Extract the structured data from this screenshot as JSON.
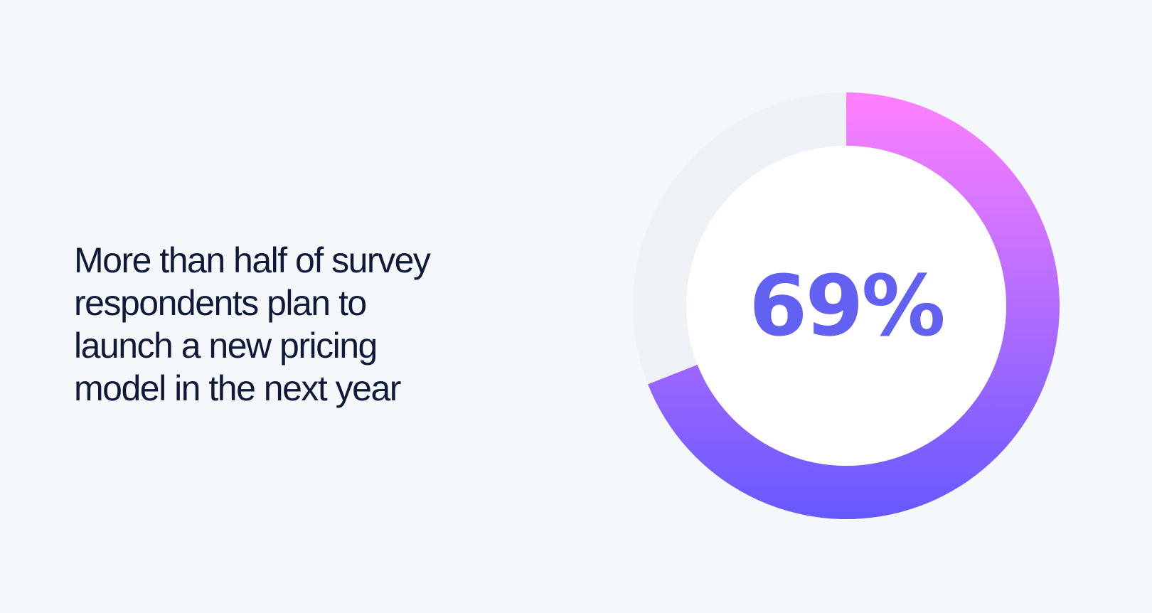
{
  "headline": {
    "lines": [
      "More than half of survey",
      "respondents plan to",
      "launch a new pricing",
      "model in the next year"
    ]
  },
  "chart_data": {
    "type": "pie",
    "variant": "donut",
    "value": 69,
    "remainder": 31,
    "center_label": "69%",
    "colors": {
      "track": "#eef2f6",
      "gradient_start": "#ff80ff",
      "gradient_end": "#6658ff",
      "center_fill": "#ffffff",
      "label": "#6361f2"
    }
  },
  "theme": {
    "background": "#f5f8fb",
    "text": "#0f1a3a"
  }
}
